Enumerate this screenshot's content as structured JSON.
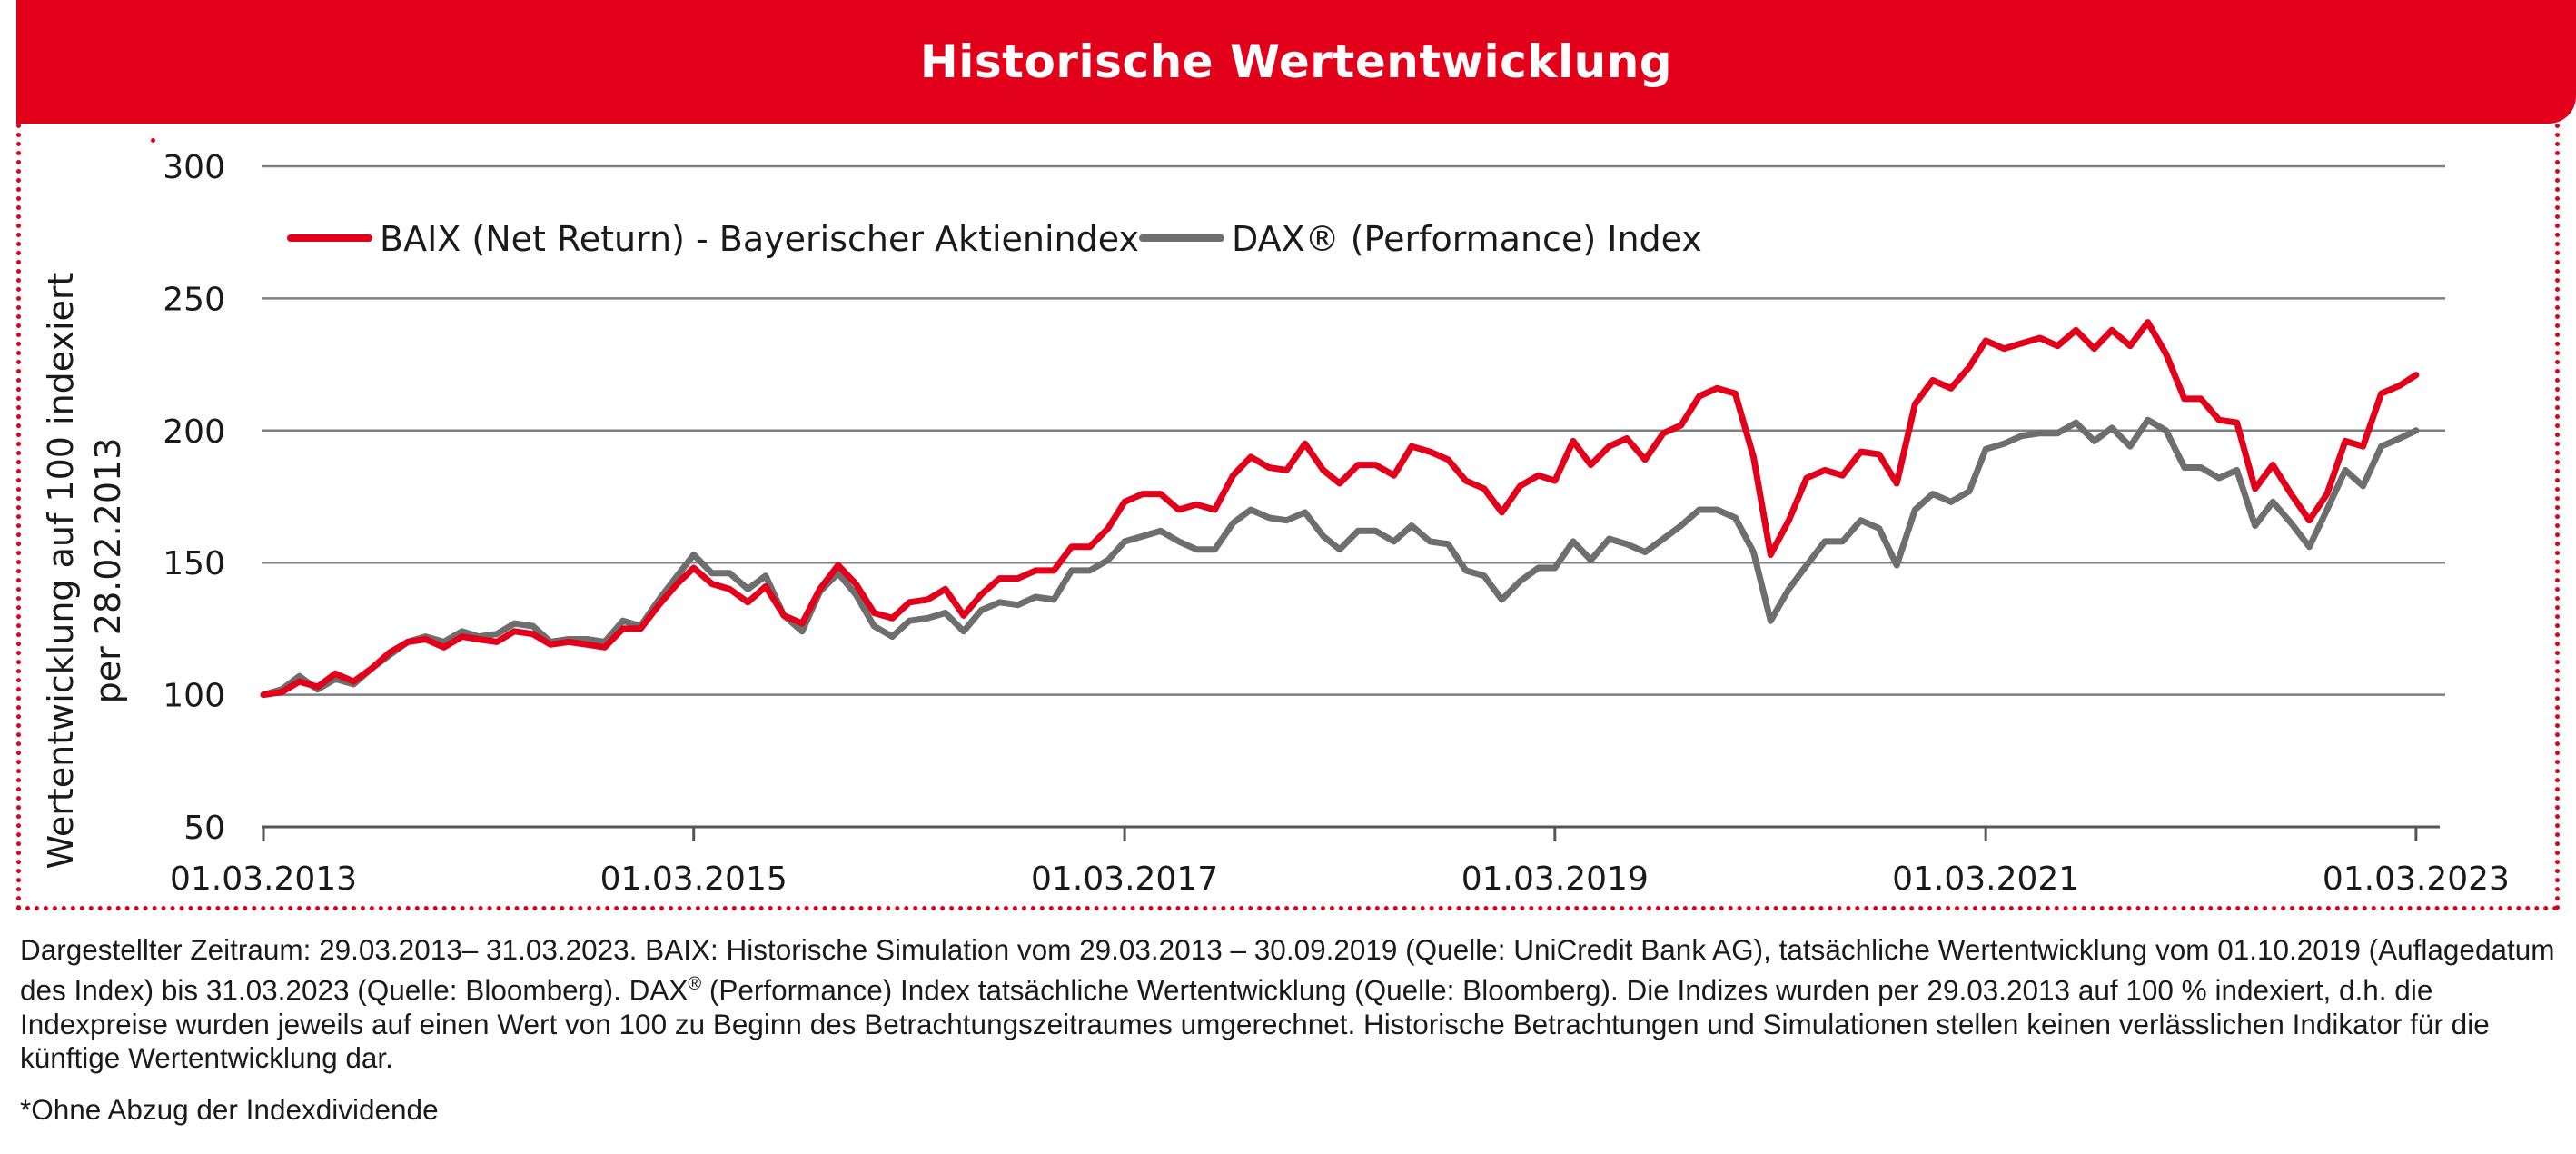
{
  "header": {
    "title": "Historische Wertentwicklung"
  },
  "colors": {
    "accent": "#e2001a",
    "baix": "#e2001a",
    "dax": "#6e6e6e",
    "grid": "#7f7f7f"
  },
  "chart_data": {
    "type": "line",
    "ylabel_lines": [
      "Wertentwicklung auf 100 indexiert",
      "per 28.02.2013"
    ],
    "ylim": [
      50,
      300
    ],
    "yticks": [
      50,
      100,
      150,
      200,
      250,
      300
    ],
    "xlim": [
      "2013-03-01",
      "2023-04-01"
    ],
    "xticks": [
      {
        "date": "2013-03-01",
        "label": "01.03.2013"
      },
      {
        "date": "2015-03-01",
        "label": "01.03.2015"
      },
      {
        "date": "2017-03-01",
        "label": "01.03.2017"
      },
      {
        "date": "2019-03-01",
        "label": "01.03.2019"
      },
      {
        "date": "2021-03-01",
        "label": "01.03.2021"
      },
      {
        "date": "2023-03-01",
        "label": "01.03.2023"
      }
    ],
    "grid": true,
    "legend": "top-left",
    "series": [
      {
        "name": "BAIX (Net Return) - Bayerischer Aktienindex",
        "color": "#e2001a",
        "points": [
          [
            "2013-03-01",
            100
          ],
          [
            "2013-04-01",
            101
          ],
          [
            "2013-05-01",
            105
          ],
          [
            "2013-06-01",
            103
          ],
          [
            "2013-07-01",
            108
          ],
          [
            "2013-08-01",
            105
          ],
          [
            "2013-09-01",
            110
          ],
          [
            "2013-10-01",
            116
          ],
          [
            "2013-11-01",
            120
          ],
          [
            "2013-12-01",
            121
          ],
          [
            "2014-01-01",
            118
          ],
          [
            "2014-02-01",
            122
          ],
          [
            "2014-03-01",
            121
          ],
          [
            "2014-04-01",
            120
          ],
          [
            "2014-05-01",
            124
          ],
          [
            "2014-06-01",
            123
          ],
          [
            "2014-07-01",
            119
          ],
          [
            "2014-08-01",
            120
          ],
          [
            "2014-09-01",
            119
          ],
          [
            "2014-10-01",
            118
          ],
          [
            "2014-11-01",
            125
          ],
          [
            "2014-12-01",
            125
          ],
          [
            "2015-01-01",
            134
          ],
          [
            "2015-02-01",
            142
          ],
          [
            "2015-03-01",
            148
          ],
          [
            "2015-04-01",
            142
          ],
          [
            "2015-05-01",
            140
          ],
          [
            "2015-06-01",
            135
          ],
          [
            "2015-07-01",
            141
          ],
          [
            "2015-08-01",
            130
          ],
          [
            "2015-09-01",
            127
          ],
          [
            "2015-10-01",
            140
          ],
          [
            "2015-11-01",
            149
          ],
          [
            "2015-12-01",
            142
          ],
          [
            "2016-01-01",
            131
          ],
          [
            "2016-02-01",
            129
          ],
          [
            "2016-03-01",
            135
          ],
          [
            "2016-04-01",
            136
          ],
          [
            "2016-05-01",
            140
          ],
          [
            "2016-06-01",
            130
          ],
          [
            "2016-07-01",
            138
          ],
          [
            "2016-08-01",
            144
          ],
          [
            "2016-09-01",
            144
          ],
          [
            "2016-10-01",
            147
          ],
          [
            "2016-11-01",
            147
          ],
          [
            "2016-12-01",
            156
          ],
          [
            "2017-01-01",
            156
          ],
          [
            "2017-02-01",
            163
          ],
          [
            "2017-03-01",
            173
          ],
          [
            "2017-04-01",
            176
          ],
          [
            "2017-05-01",
            176
          ],
          [
            "2017-06-01",
            170
          ],
          [
            "2017-07-01",
            172
          ],
          [
            "2017-08-01",
            170
          ],
          [
            "2017-09-01",
            183
          ],
          [
            "2017-10-01",
            190
          ],
          [
            "2017-11-01",
            186
          ],
          [
            "2017-12-01",
            185
          ],
          [
            "2018-01-01",
            195
          ],
          [
            "2018-02-01",
            185
          ],
          [
            "2018-03-01",
            180
          ],
          [
            "2018-04-01",
            187
          ],
          [
            "2018-05-01",
            187
          ],
          [
            "2018-06-01",
            183
          ],
          [
            "2018-07-01",
            194
          ],
          [
            "2018-08-01",
            192
          ],
          [
            "2018-09-01",
            189
          ],
          [
            "2018-10-01",
            181
          ],
          [
            "2018-11-01",
            178
          ],
          [
            "2018-12-01",
            169
          ],
          [
            "2019-01-01",
            179
          ],
          [
            "2019-02-01",
            183
          ],
          [
            "2019-03-01",
            181
          ],
          [
            "2019-04-01",
            196
          ],
          [
            "2019-05-01",
            187
          ],
          [
            "2019-06-01",
            194
          ],
          [
            "2019-07-01",
            197
          ],
          [
            "2019-08-01",
            189
          ],
          [
            "2019-09-01",
            199
          ],
          [
            "2019-10-01",
            202
          ],
          [
            "2019-11-01",
            213
          ],
          [
            "2019-12-01",
            216
          ],
          [
            "2020-01-01",
            214
          ],
          [
            "2020-02-01",
            190
          ],
          [
            "2020-03-01",
            153
          ],
          [
            "2020-04-01",
            166
          ],
          [
            "2020-05-01",
            182
          ],
          [
            "2020-06-01",
            185
          ],
          [
            "2020-07-01",
            183
          ],
          [
            "2020-08-01",
            192
          ],
          [
            "2020-09-01",
            191
          ],
          [
            "2020-10-01",
            180
          ],
          [
            "2020-11-01",
            210
          ],
          [
            "2020-12-01",
            219
          ],
          [
            "2021-01-01",
            216
          ],
          [
            "2021-02-01",
            224
          ],
          [
            "2021-03-01",
            234
          ],
          [
            "2021-04-01",
            231
          ],
          [
            "2021-05-01",
            233
          ],
          [
            "2021-06-01",
            235
          ],
          [
            "2021-07-01",
            232
          ],
          [
            "2021-08-01",
            238
          ],
          [
            "2021-09-01",
            231
          ],
          [
            "2021-10-01",
            238
          ],
          [
            "2021-11-01",
            232
          ],
          [
            "2021-12-01",
            241
          ],
          [
            "2022-01-01",
            229
          ],
          [
            "2022-02-01",
            212
          ],
          [
            "2022-03-01",
            212
          ],
          [
            "2022-04-01",
            204
          ],
          [
            "2022-05-01",
            203
          ],
          [
            "2022-06-01",
            178
          ],
          [
            "2022-07-01",
            187
          ],
          [
            "2022-08-01",
            176
          ],
          [
            "2022-09-01",
            166
          ],
          [
            "2022-10-01",
            176
          ],
          [
            "2022-11-01",
            196
          ],
          [
            "2022-12-01",
            194
          ],
          [
            "2023-01-01",
            214
          ],
          [
            "2023-02-01",
            217
          ],
          [
            "2023-03-01",
            221
          ]
        ]
      },
      {
        "name": "DAX® (Performance) Index",
        "color": "#6e6e6e",
        "points": [
          [
            "2013-03-01",
            100
          ],
          [
            "2013-04-01",
            102
          ],
          [
            "2013-05-01",
            107
          ],
          [
            "2013-06-01",
            102
          ],
          [
            "2013-07-01",
            106
          ],
          [
            "2013-08-01",
            104
          ],
          [
            "2013-09-01",
            110
          ],
          [
            "2013-10-01",
            115
          ],
          [
            "2013-11-01",
            120
          ],
          [
            "2013-12-01",
            122
          ],
          [
            "2014-01-01",
            120
          ],
          [
            "2014-02-01",
            124
          ],
          [
            "2014-03-01",
            122
          ],
          [
            "2014-04-01",
            123
          ],
          [
            "2014-05-01",
            127
          ],
          [
            "2014-06-01",
            126
          ],
          [
            "2014-07-01",
            120
          ],
          [
            "2014-08-01",
            121
          ],
          [
            "2014-09-01",
            121
          ],
          [
            "2014-10-01",
            120
          ],
          [
            "2014-11-01",
            128
          ],
          [
            "2014-12-01",
            126
          ],
          [
            "2015-01-01",
            136
          ],
          [
            "2015-02-01",
            145
          ],
          [
            "2015-03-01",
            153
          ],
          [
            "2015-04-01",
            146
          ],
          [
            "2015-05-01",
            146
          ],
          [
            "2015-06-01",
            140
          ],
          [
            "2015-07-01",
            145
          ],
          [
            "2015-08-01",
            130
          ],
          [
            "2015-09-01",
            124
          ],
          [
            "2015-10-01",
            139
          ],
          [
            "2015-11-01",
            146
          ],
          [
            "2015-12-01",
            138
          ],
          [
            "2016-01-01",
            126
          ],
          [
            "2016-02-01",
            122
          ],
          [
            "2016-03-01",
            128
          ],
          [
            "2016-04-01",
            129
          ],
          [
            "2016-05-01",
            131
          ],
          [
            "2016-06-01",
            124
          ],
          [
            "2016-07-01",
            132
          ],
          [
            "2016-08-01",
            135
          ],
          [
            "2016-09-01",
            134
          ],
          [
            "2016-10-01",
            137
          ],
          [
            "2016-11-01",
            136
          ],
          [
            "2016-12-01",
            147
          ],
          [
            "2017-01-01",
            147
          ],
          [
            "2017-02-01",
            151
          ],
          [
            "2017-03-01",
            158
          ],
          [
            "2017-04-01",
            160
          ],
          [
            "2017-05-01",
            162
          ],
          [
            "2017-06-01",
            158
          ],
          [
            "2017-07-01",
            155
          ],
          [
            "2017-08-01",
            155
          ],
          [
            "2017-09-01",
            165
          ],
          [
            "2017-10-01",
            170
          ],
          [
            "2017-11-01",
            167
          ],
          [
            "2017-12-01",
            166
          ],
          [
            "2018-01-01",
            169
          ],
          [
            "2018-02-01",
            160
          ],
          [
            "2018-03-01",
            155
          ],
          [
            "2018-04-01",
            162
          ],
          [
            "2018-05-01",
            162
          ],
          [
            "2018-06-01",
            158
          ],
          [
            "2018-07-01",
            164
          ],
          [
            "2018-08-01",
            158
          ],
          [
            "2018-09-01",
            157
          ],
          [
            "2018-10-01",
            147
          ],
          [
            "2018-11-01",
            145
          ],
          [
            "2018-12-01",
            136
          ],
          [
            "2019-01-01",
            143
          ],
          [
            "2019-02-01",
            148
          ],
          [
            "2019-03-01",
            148
          ],
          [
            "2019-04-01",
            158
          ],
          [
            "2019-05-01",
            151
          ],
          [
            "2019-06-01",
            159
          ],
          [
            "2019-07-01",
            157
          ],
          [
            "2019-08-01",
            154
          ],
          [
            "2019-09-01",
            159
          ],
          [
            "2019-10-01",
            164
          ],
          [
            "2019-11-01",
            170
          ],
          [
            "2019-12-01",
            170
          ],
          [
            "2020-01-01",
            167
          ],
          [
            "2020-02-01",
            154
          ],
          [
            "2020-03-01",
            128
          ],
          [
            "2020-04-01",
            140
          ],
          [
            "2020-05-01",
            149
          ],
          [
            "2020-06-01",
            158
          ],
          [
            "2020-07-01",
            158
          ],
          [
            "2020-08-01",
            166
          ],
          [
            "2020-09-01",
            163
          ],
          [
            "2020-10-01",
            149
          ],
          [
            "2020-11-01",
            170
          ],
          [
            "2020-12-01",
            176
          ],
          [
            "2021-01-01",
            173
          ],
          [
            "2021-02-01",
            177
          ],
          [
            "2021-03-01",
            193
          ],
          [
            "2021-04-01",
            195
          ],
          [
            "2021-05-01",
            198
          ],
          [
            "2021-06-01",
            199
          ],
          [
            "2021-07-01",
            199
          ],
          [
            "2021-08-01",
            203
          ],
          [
            "2021-09-01",
            196
          ],
          [
            "2021-10-01",
            201
          ],
          [
            "2021-11-01",
            194
          ],
          [
            "2021-12-01",
            204
          ],
          [
            "2022-01-01",
            200
          ],
          [
            "2022-02-01",
            186
          ],
          [
            "2022-03-01",
            186
          ],
          [
            "2022-04-01",
            182
          ],
          [
            "2022-05-01",
            185
          ],
          [
            "2022-06-01",
            164
          ],
          [
            "2022-07-01",
            173
          ],
          [
            "2022-08-01",
            165
          ],
          [
            "2022-09-01",
            156
          ],
          [
            "2022-10-01",
            170
          ],
          [
            "2022-11-01",
            185
          ],
          [
            "2022-12-01",
            179
          ],
          [
            "2023-01-01",
            194
          ],
          [
            "2023-02-01",
            197
          ],
          [
            "2023-03-01",
            200
          ]
        ]
      }
    ]
  },
  "notes": {
    "disclaimer_pre": "Dargestellter Zeitraum: 29.03.2013– 31.03.2023. BAIX: Historische Simulation vom 29.03.2013 – 30.09.2019 (Quelle: UniCredit Bank AG), tatsächliche Wertentwicklung vom 01.10.2019 (Auflagedatum des Index) bis 31.03.2023 (Quelle: Bloomberg). DAX",
    "disclaimer_sup": "®",
    "disclaimer_post": " (Performance) Index tatsächliche Wertentwicklung (Quelle: Bloomberg). Die Indizes wurden per 29.03.2013 auf 100 % indexiert, d.h. die Indexpreise wurden jeweils auf einen Wert von 100 zu Beginn des Betrachtungszeitraumes umgerechnet. Historische Betrachtungen und Simulationen stellen keinen verlässlichen Indikator für die künftige Wertentwicklung dar.",
    "footnote": "*Ohne Abzug der Indexdividende"
  }
}
